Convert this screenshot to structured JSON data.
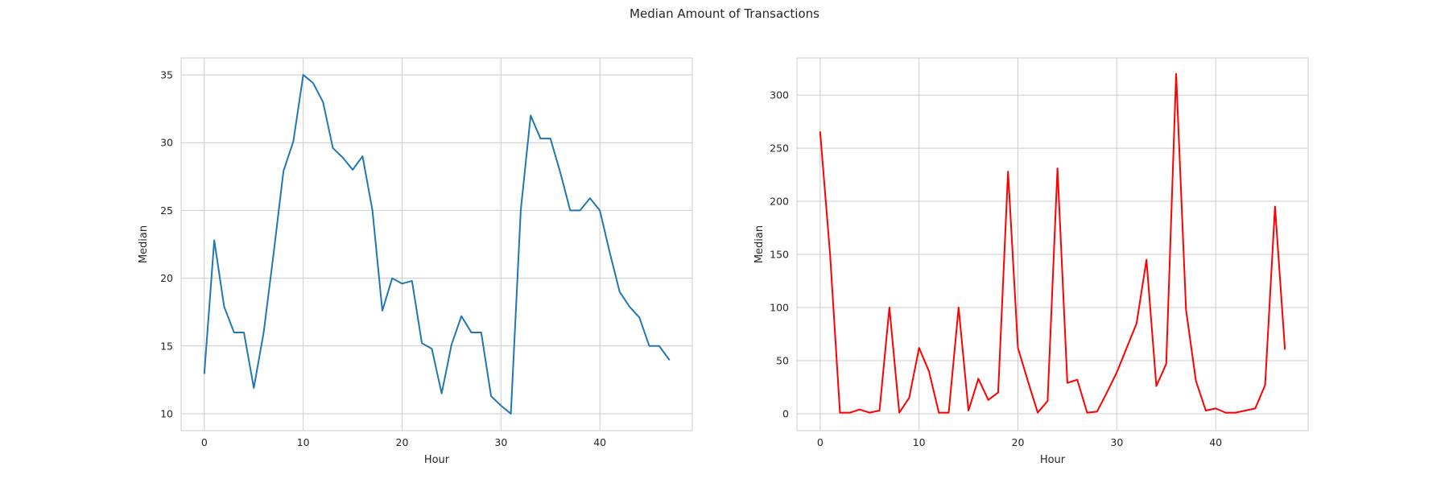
{
  "figure": {
    "title": "Median Amount of Transactions"
  },
  "chart_data": [
    {
      "type": "line",
      "title": "",
      "xlabel": "Hour",
      "ylabel": "Median",
      "xlim": [
        -2.35,
        49.35
      ],
      "ylim": [
        8.75,
        36.25
      ],
      "xticks": [
        0,
        10,
        20,
        30,
        40
      ],
      "yticks": [
        10,
        15,
        20,
        25,
        30,
        35
      ],
      "grid": true,
      "series": [
        {
          "color": "#1f77b4",
          "x": [
            0,
            1,
            2,
            3,
            4,
            5,
            6,
            7,
            8,
            9,
            10,
            11,
            12,
            13,
            14,
            15,
            16,
            17,
            18,
            19,
            20,
            21,
            22,
            23,
            24,
            25,
            26,
            27,
            28,
            29,
            30,
            31,
            32,
            33,
            34,
            35,
            36,
            37,
            38,
            39,
            40,
            41,
            42,
            43,
            44,
            45,
            46,
            47
          ],
          "values": [
            13.0,
            22.8,
            17.9,
            16.0,
            16.0,
            11.9,
            16.0,
            21.8,
            27.9,
            30.1,
            35.0,
            34.4,
            33.0,
            29.6,
            28.9,
            28.0,
            29.0,
            25.0,
            17.6,
            20.0,
            19.6,
            19.8,
            15.2,
            14.8,
            11.5,
            15.1,
            17.2,
            16.0,
            16.0,
            11.3,
            10.6,
            10.0,
            25.0,
            32.0,
            30.3,
            30.3,
            27.8,
            25.0,
            25.0,
            25.9,
            25.0,
            21.9,
            19.0,
            17.9,
            17.1,
            15.0,
            15.0,
            14.0
          ]
        }
      ]
    },
    {
      "type": "line",
      "title": "",
      "xlabel": "Hour",
      "ylabel": "Median",
      "xlim": [
        -2.35,
        49.35
      ],
      "ylim": [
        -15.95,
        334.95
      ],
      "xticks": [
        0,
        10,
        20,
        30,
        40
      ],
      "yticks": [
        0,
        50,
        100,
        150,
        200,
        250,
        300
      ],
      "grid": true,
      "series": [
        {
          "color": "#ff0000",
          "x": [
            0,
            1,
            2,
            3,
            4,
            5,
            6,
            7,
            8,
            9,
            10,
            11,
            12,
            13,
            14,
            15,
            16,
            17,
            18,
            19,
            20,
            21,
            22,
            23,
            24,
            25,
            26,
            27,
            28,
            29,
            30,
            31,
            32,
            33,
            34,
            35,
            36,
            37,
            38,
            39,
            40,
            41,
            42,
            43,
            44,
            45,
            46,
            47
          ],
          "values": [
            265,
            150,
            1,
            1,
            4,
            1,
            3,
            100,
            1,
            15,
            62,
            40,
            1,
            1,
            100,
            3,
            33,
            13,
            20,
            228,
            62,
            31,
            1,
            12,
            231,
            29,
            32,
            1,
            2,
            20,
            39,
            62,
            85,
            145,
            26,
            47,
            320,
            98,
            31,
            3,
            5,
            1,
            1,
            3,
            5,
            27,
            195,
            61
          ]
        }
      ]
    }
  ]
}
